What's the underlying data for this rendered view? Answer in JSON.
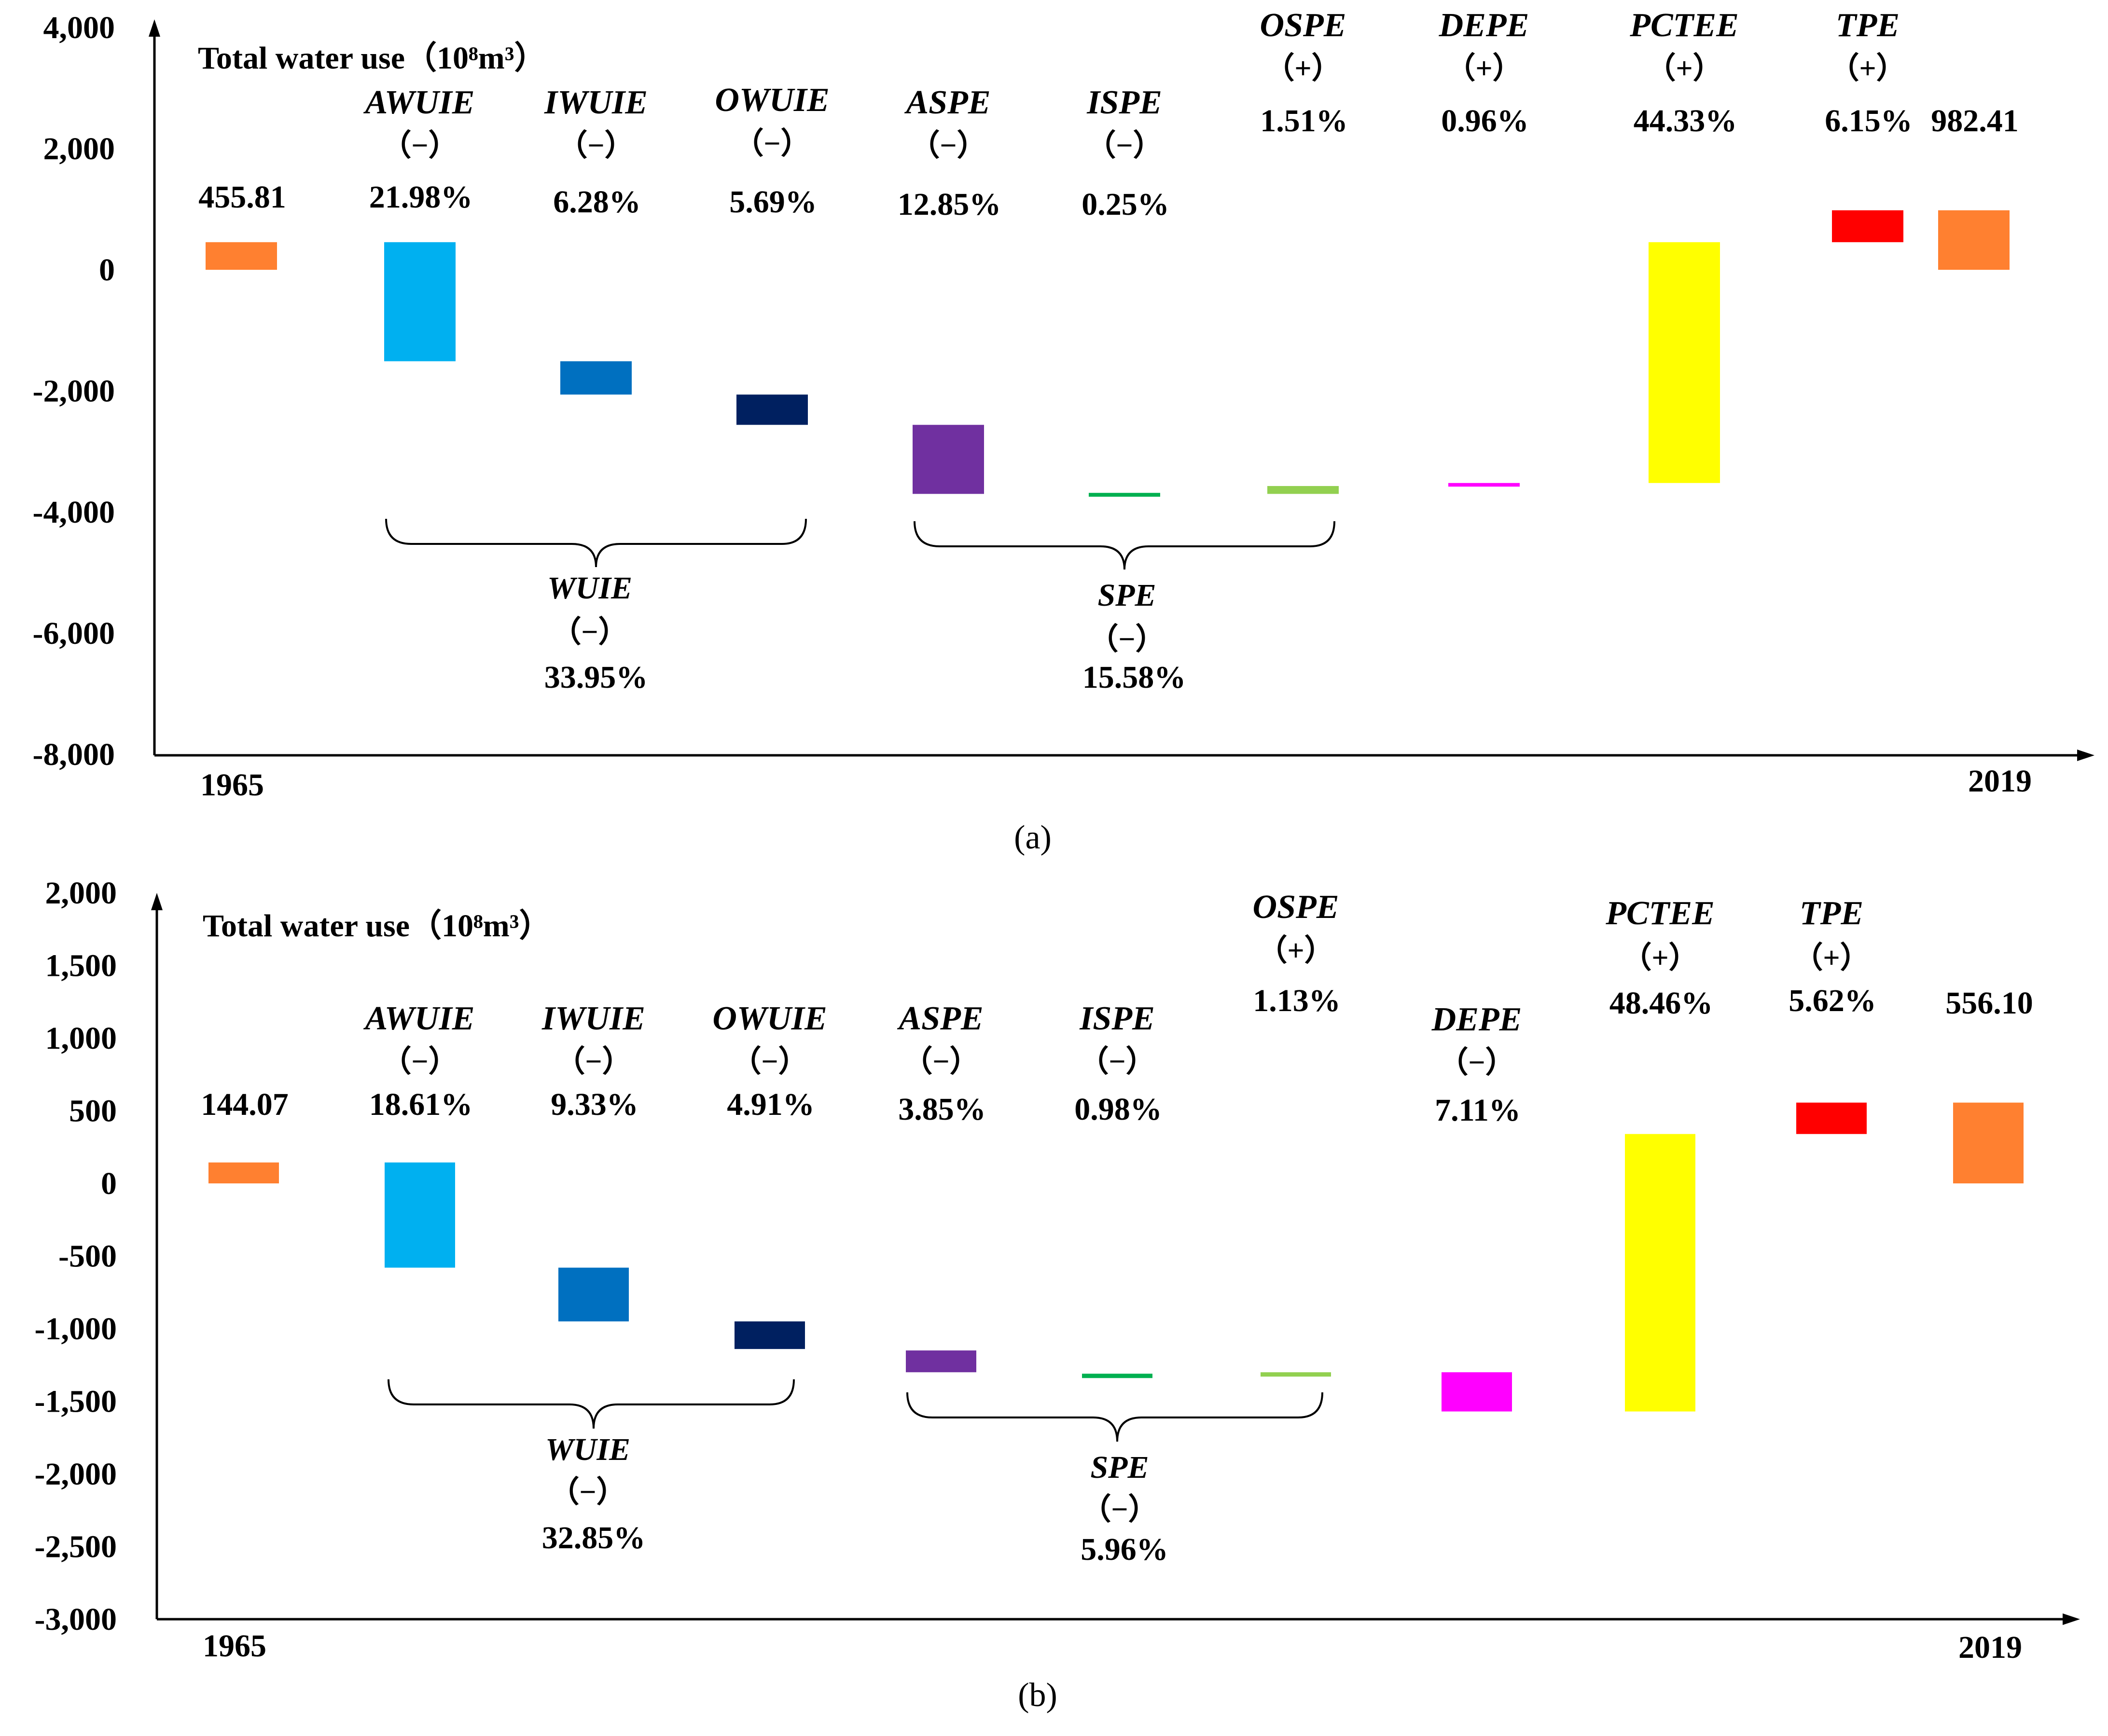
{
  "charts": [
    {
      "panel_label": "(a)",
      "unit_label": "Total water use（10⁸m³）",
      "y_ticks": [
        "4,000",
        "2,000",
        "0",
        "-2,000",
        "-4,000",
        "-6,000",
        "-8,000"
      ],
      "start_year": "1965",
      "end_year": "2019",
      "bars": [
        {
          "name": "1965",
          "label": "",
          "sign": "",
          "pct": "455.81",
          "color": "#FF8030"
        },
        {
          "name": "AWUIE",
          "label": "AWUIE",
          "sign": "（−）",
          "pct": "21.98%",
          "color": "#00B0F0"
        },
        {
          "name": "IWUIE",
          "label": "IWUIE",
          "sign": "（−）",
          "pct": "6.28%",
          "color": "#0070C0"
        },
        {
          "name": "OWUIE",
          "label": "OWUIE",
          "sign": "（−）",
          "pct": "5.69%",
          "color": "#002060"
        },
        {
          "name": "ASPE",
          "label": "ASPE",
          "sign": "（−）",
          "pct": "12.85%",
          "color": "#7030A0"
        },
        {
          "name": "ISPE",
          "label": "ISPE",
          "sign": "（−）",
          "pct": "0.25%",
          "color": "#00B050"
        },
        {
          "name": "OSPE",
          "label": "OSPE",
          "sign": "（+）",
          "pct": "1.51%",
          "color": "#92D050"
        },
        {
          "name": "DEPE",
          "label": "DEPE",
          "sign": "（+）",
          "pct": "0.96%",
          "color": "#FF00FF"
        },
        {
          "name": "PCTEE",
          "label": "PCTEE",
          "sign": "（+）",
          "pct": "44.33%",
          "color": "#FFFF00"
        },
        {
          "name": "TPE",
          "label": "TPE",
          "sign": "（+）",
          "pct": "6.15%",
          "color": "#FF0000"
        },
        {
          "name": "2019",
          "label": "",
          "sign": "",
          "pct": "982.41",
          "color": "#FF8030"
        }
      ],
      "groups": [
        {
          "name": "WUIE",
          "sign": "（−）",
          "pct": "33.95%"
        },
        {
          "name": "SPE",
          "sign": "（−）",
          "pct": "15.58%"
        }
      ]
    },
    {
      "panel_label": "(b)",
      "unit_label": "Total water use（10⁸m³）",
      "y_ticks": [
        "2,000",
        "1,500",
        "1,000",
        "500",
        "0",
        "-500",
        "-1,000",
        "-1,500",
        "-2,000",
        "-2,500",
        "-3,000"
      ],
      "start_year": "1965",
      "end_year": "2019",
      "bars": [
        {
          "name": "1965",
          "label": "",
          "sign": "",
          "pct": "144.07",
          "color": "#FF8030"
        },
        {
          "name": "AWUIE",
          "label": "AWUIE",
          "sign": "（−）",
          "pct": "18.61%",
          "color": "#00B0F0"
        },
        {
          "name": "IWUIE",
          "label": "IWUIE",
          "sign": "（−）",
          "pct": "9.33%",
          "color": "#0070C0"
        },
        {
          "name": "OWUIE",
          "label": "OWUIE",
          "sign": "（−）",
          "pct": "4.91%",
          "color": "#002060"
        },
        {
          "name": "ASPE",
          "label": "ASPE",
          "sign": "（−）",
          "pct": "3.85%",
          "color": "#7030A0"
        },
        {
          "name": "ISPE",
          "label": "ISPE",
          "sign": "（−）",
          "pct": "0.98%",
          "color": "#00B050"
        },
        {
          "name": "OSPE",
          "label": "OSPE",
          "sign": "（+）",
          "pct": "1.13%",
          "color": "#92D050"
        },
        {
          "name": "DEPE",
          "label": "DEPE",
          "sign": "（−）",
          "pct": "7.11%",
          "color": "#FF00FF"
        },
        {
          "name": "PCTEE",
          "label": "PCTEE",
          "sign": "（+）",
          "pct": "48.46%",
          "color": "#FFFF00"
        },
        {
          "name": "TPE",
          "label": "TPE",
          "sign": "（+）",
          "pct": "5.62%",
          "color": "#FF0000"
        },
        {
          "name": "2019",
          "label": "",
          "sign": "",
          "pct": "556.10",
          "color": "#FF8030"
        }
      ],
      "groups": [
        {
          "name": "WUIE",
          "sign": "（−）",
          "pct": "32.85%"
        },
        {
          "name": "SPE",
          "sign": "（−）",
          "pct": "5.96%"
        }
      ]
    }
  ],
  "chart_data": [
    {
      "type": "bar",
      "subtype": "waterfall",
      "title": "(a)",
      "ylabel": "Total water use（10⁸m³）",
      "ylim": [
        -8000,
        4000
      ],
      "categories": [
        "1965",
        "AWUIE",
        "IWUIE",
        "OWUIE",
        "ASPE",
        "ISPE",
        "OSPE",
        "DEPE",
        "PCTEE",
        "TPE",
        "2019"
      ],
      "ranges": [
        [
          0,
          455.81
        ],
        [
          -1510,
          455.81
        ],
        [
          -2060,
          -1510
        ],
        [
          -2560,
          -2060
        ],
        [
          -3700,
          -2560
        ],
        [
          -3730,
          -3700
        ],
        [
          -3700,
          -3570
        ],
        [
          -3580,
          -3520
        ],
        [
          -3520,
          455.81
        ],
        [
          455.81,
          982.41
        ],
        [
          0,
          982.41
        ]
      ]
    },
    {
      "type": "bar",
      "subtype": "waterfall",
      "title": "(b)",
      "ylabel": "Total water use（10⁸m³）",
      "ylim": [
        -3000,
        2000
      ],
      "categories": [
        "1965",
        "AWUIE",
        "IWUIE",
        "OWUIE",
        "ASPE",
        "ISPE",
        "OSPE",
        "DEPE",
        "PCTEE",
        "TPE",
        "2019"
      ],
      "ranges": [
        [
          0,
          144.07
        ],
        [
          -580,
          144.07
        ],
        [
          -950,
          -580
        ],
        [
          -1140,
          -950
        ],
        [
          -1300,
          -1150
        ],
        [
          -1340,
          -1310
        ],
        [
          -1330,
          -1300
        ],
        [
          -1570,
          -1300
        ],
        [
          -1570,
          340
        ],
        [
          340,
          556.1
        ],
        [
          0,
          556.1
        ]
      ]
    }
  ]
}
